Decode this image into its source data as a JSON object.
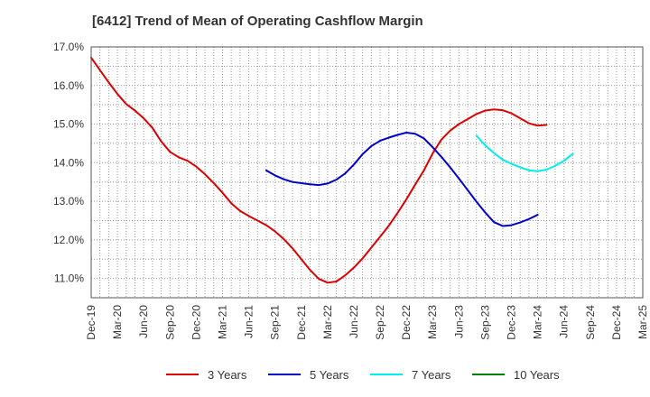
{
  "title": "[6412]  Trend of Mean of Operating Cashflow Margin",
  "chart_data": {
    "type": "line",
    "title": "[6412]  Trend of Mean of Operating Cashflow Margin",
    "xlabel": "",
    "ylabel": "",
    "x_tick_labels": [
      "Dec-19",
      "Mar-20",
      "Jun-20",
      "Sep-20",
      "Dec-20",
      "Mar-21",
      "Jun-21",
      "Sep-21",
      "Dec-21",
      "Mar-22",
      "Jun-22",
      "Sep-22",
      "Dec-22",
      "Mar-23",
      "Jun-23",
      "Sep-23",
      "Dec-23",
      "Mar-24",
      "Jun-24",
      "Sep-24",
      "Dec-24",
      "Mar-25"
    ],
    "y_tick_labels": [
      "11.0%",
      "12.0%",
      "13.0%",
      "14.0%",
      "15.0%",
      "16.0%",
      "17.0%"
    ],
    "ylim": [
      10.5,
      17.0
    ],
    "grid": true,
    "legend_position": "bottom",
    "series": [
      {
        "name": "3 Years",
        "color": "#dd0000",
        "values": [
          16.72,
          16.4,
          16.08,
          15.78,
          15.52,
          15.35,
          15.15,
          14.9,
          14.55,
          14.28,
          14.14,
          14.05,
          13.9,
          13.7,
          13.47,
          13.22,
          12.95,
          12.75,
          12.62,
          12.5,
          12.38,
          12.22,
          12.02,
          11.78,
          11.5,
          11.22,
          10.99,
          10.89,
          10.92,
          11.08,
          11.28,
          11.52,
          11.8,
          12.08,
          12.37,
          12.7,
          13.05,
          13.43,
          13.8,
          14.24,
          14.6,
          14.83,
          15.0,
          15.13,
          15.26,
          15.35,
          15.38,
          15.36,
          15.28,
          15.15,
          15.02,
          14.96,
          14.98
        ]
      },
      {
        "name": "5 Years",
        "start_index": 20,
        "color": "#0000cc",
        "values": [
          13.8,
          13.67,
          13.57,
          13.5,
          13.47,
          13.44,
          13.42,
          13.46,
          13.56,
          13.72,
          13.95,
          14.22,
          14.43,
          14.57,
          14.65,
          14.72,
          14.78,
          14.75,
          14.63,
          14.4,
          14.15,
          13.88,
          13.59,
          13.29,
          12.99,
          12.71,
          12.46,
          12.36,
          12.38,
          12.45,
          12.54,
          12.65
        ]
      },
      {
        "name": "7 Years",
        "start_index": 44,
        "color": "#00eeee",
        "values": [
          14.7,
          14.45,
          14.25,
          14.08,
          13.97,
          13.88,
          13.8,
          13.78,
          13.82,
          13.92,
          14.05,
          14.23
        ]
      },
      {
        "name": "10 Years",
        "color": "#008000",
        "values": []
      }
    ]
  }
}
